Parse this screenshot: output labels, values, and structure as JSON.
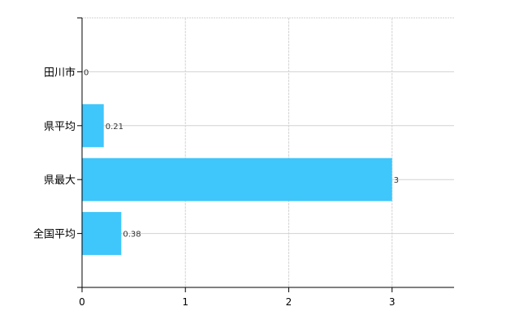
{
  "chart_data": {
    "type": "bar",
    "orientation": "horizontal",
    "categories": [
      "田川市",
      "県平均",
      "県最大",
      "全国平均"
    ],
    "values": [
      0,
      0.21,
      3,
      0.38
    ],
    "data_labels": [
      "0",
      "0.21",
      "3",
      "0.38"
    ],
    "x_ticks": [
      "0",
      "1",
      "2",
      "3"
    ],
    "xlim": [
      0,
      3.6
    ],
    "grid": true,
    "bar_color": "#3fc6fb",
    "title": "",
    "xlabel": "",
    "ylabel": ""
  }
}
